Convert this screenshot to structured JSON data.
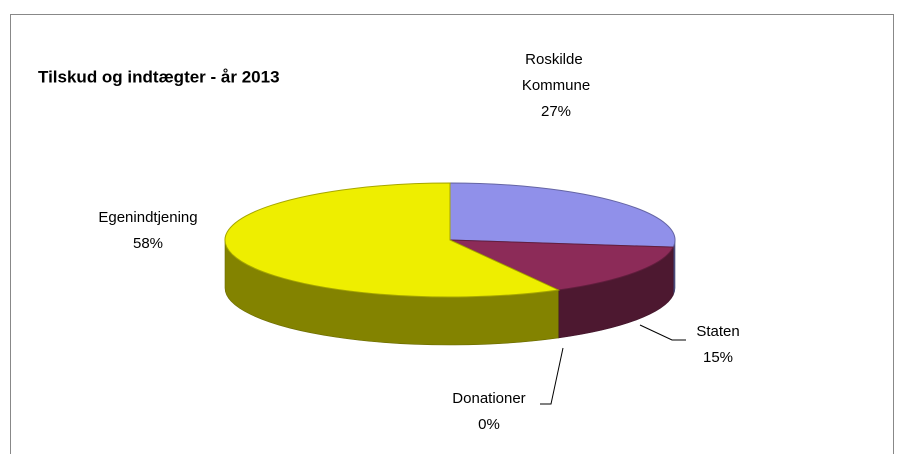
{
  "chart_data": {
    "type": "pie3d",
    "title": "Tilskud og indtægter - år 2013",
    "categories": [
      "Roskilde Kommune",
      "Staten",
      "Donationer",
      "Egenindtjening"
    ],
    "values": [
      27,
      15,
      0,
      58
    ],
    "value_labels": [
      "27%",
      "15%",
      "0%",
      "58%"
    ],
    "colors": [
      "#9090ea",
      "#8c2b58",
      "#c00000",
      "#eeee00"
    ]
  }
}
